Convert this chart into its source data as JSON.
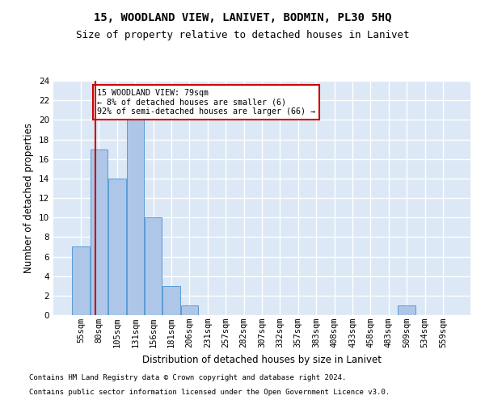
{
  "title1": "15, WOODLAND VIEW, LANIVET, BODMIN, PL30 5HQ",
  "title2": "Size of property relative to detached houses in Lanivet",
  "xlabel": "Distribution of detached houses by size in Lanivet",
  "ylabel": "Number of detached properties",
  "categories": [
    "55sqm",
    "80sqm",
    "105sqm",
    "131sqm",
    "156sqm",
    "181sqm",
    "206sqm",
    "231sqm",
    "257sqm",
    "282sqm",
    "307sqm",
    "332sqm",
    "357sqm",
    "383sqm",
    "408sqm",
    "433sqm",
    "458sqm",
    "483sqm",
    "509sqm",
    "534sqm",
    "559sqm"
  ],
  "values": [
    7,
    17,
    14,
    20,
    10,
    3,
    1,
    0,
    0,
    0,
    0,
    0,
    0,
    0,
    0,
    0,
    0,
    0,
    1,
    0,
    0
  ],
  "bar_color": "#aec6e8",
  "bar_edge_color": "#5b9bd5",
  "bg_color": "#dce8f5",
  "grid_color": "#ffffff",
  "vline_color": "#cc0000",
  "annotation_text": "15 WOODLAND VIEW: 79sqm\n← 8% of detached houses are smaller (6)\n92% of semi-detached houses are larger (66) →",
  "annotation_box_color": "#cc0000",
  "ylim": [
    0,
    24
  ],
  "yticks": [
    0,
    2,
    4,
    6,
    8,
    10,
    12,
    14,
    16,
    18,
    20,
    22,
    24
  ],
  "footer1": "Contains HM Land Registry data © Crown copyright and database right 2024.",
  "footer2": "Contains public sector information licensed under the Open Government Licence v3.0.",
  "title1_fontsize": 10,
  "title2_fontsize": 9,
  "axis_label_fontsize": 8.5,
  "tick_fontsize": 7.5,
  "footer_fontsize": 6.5
}
